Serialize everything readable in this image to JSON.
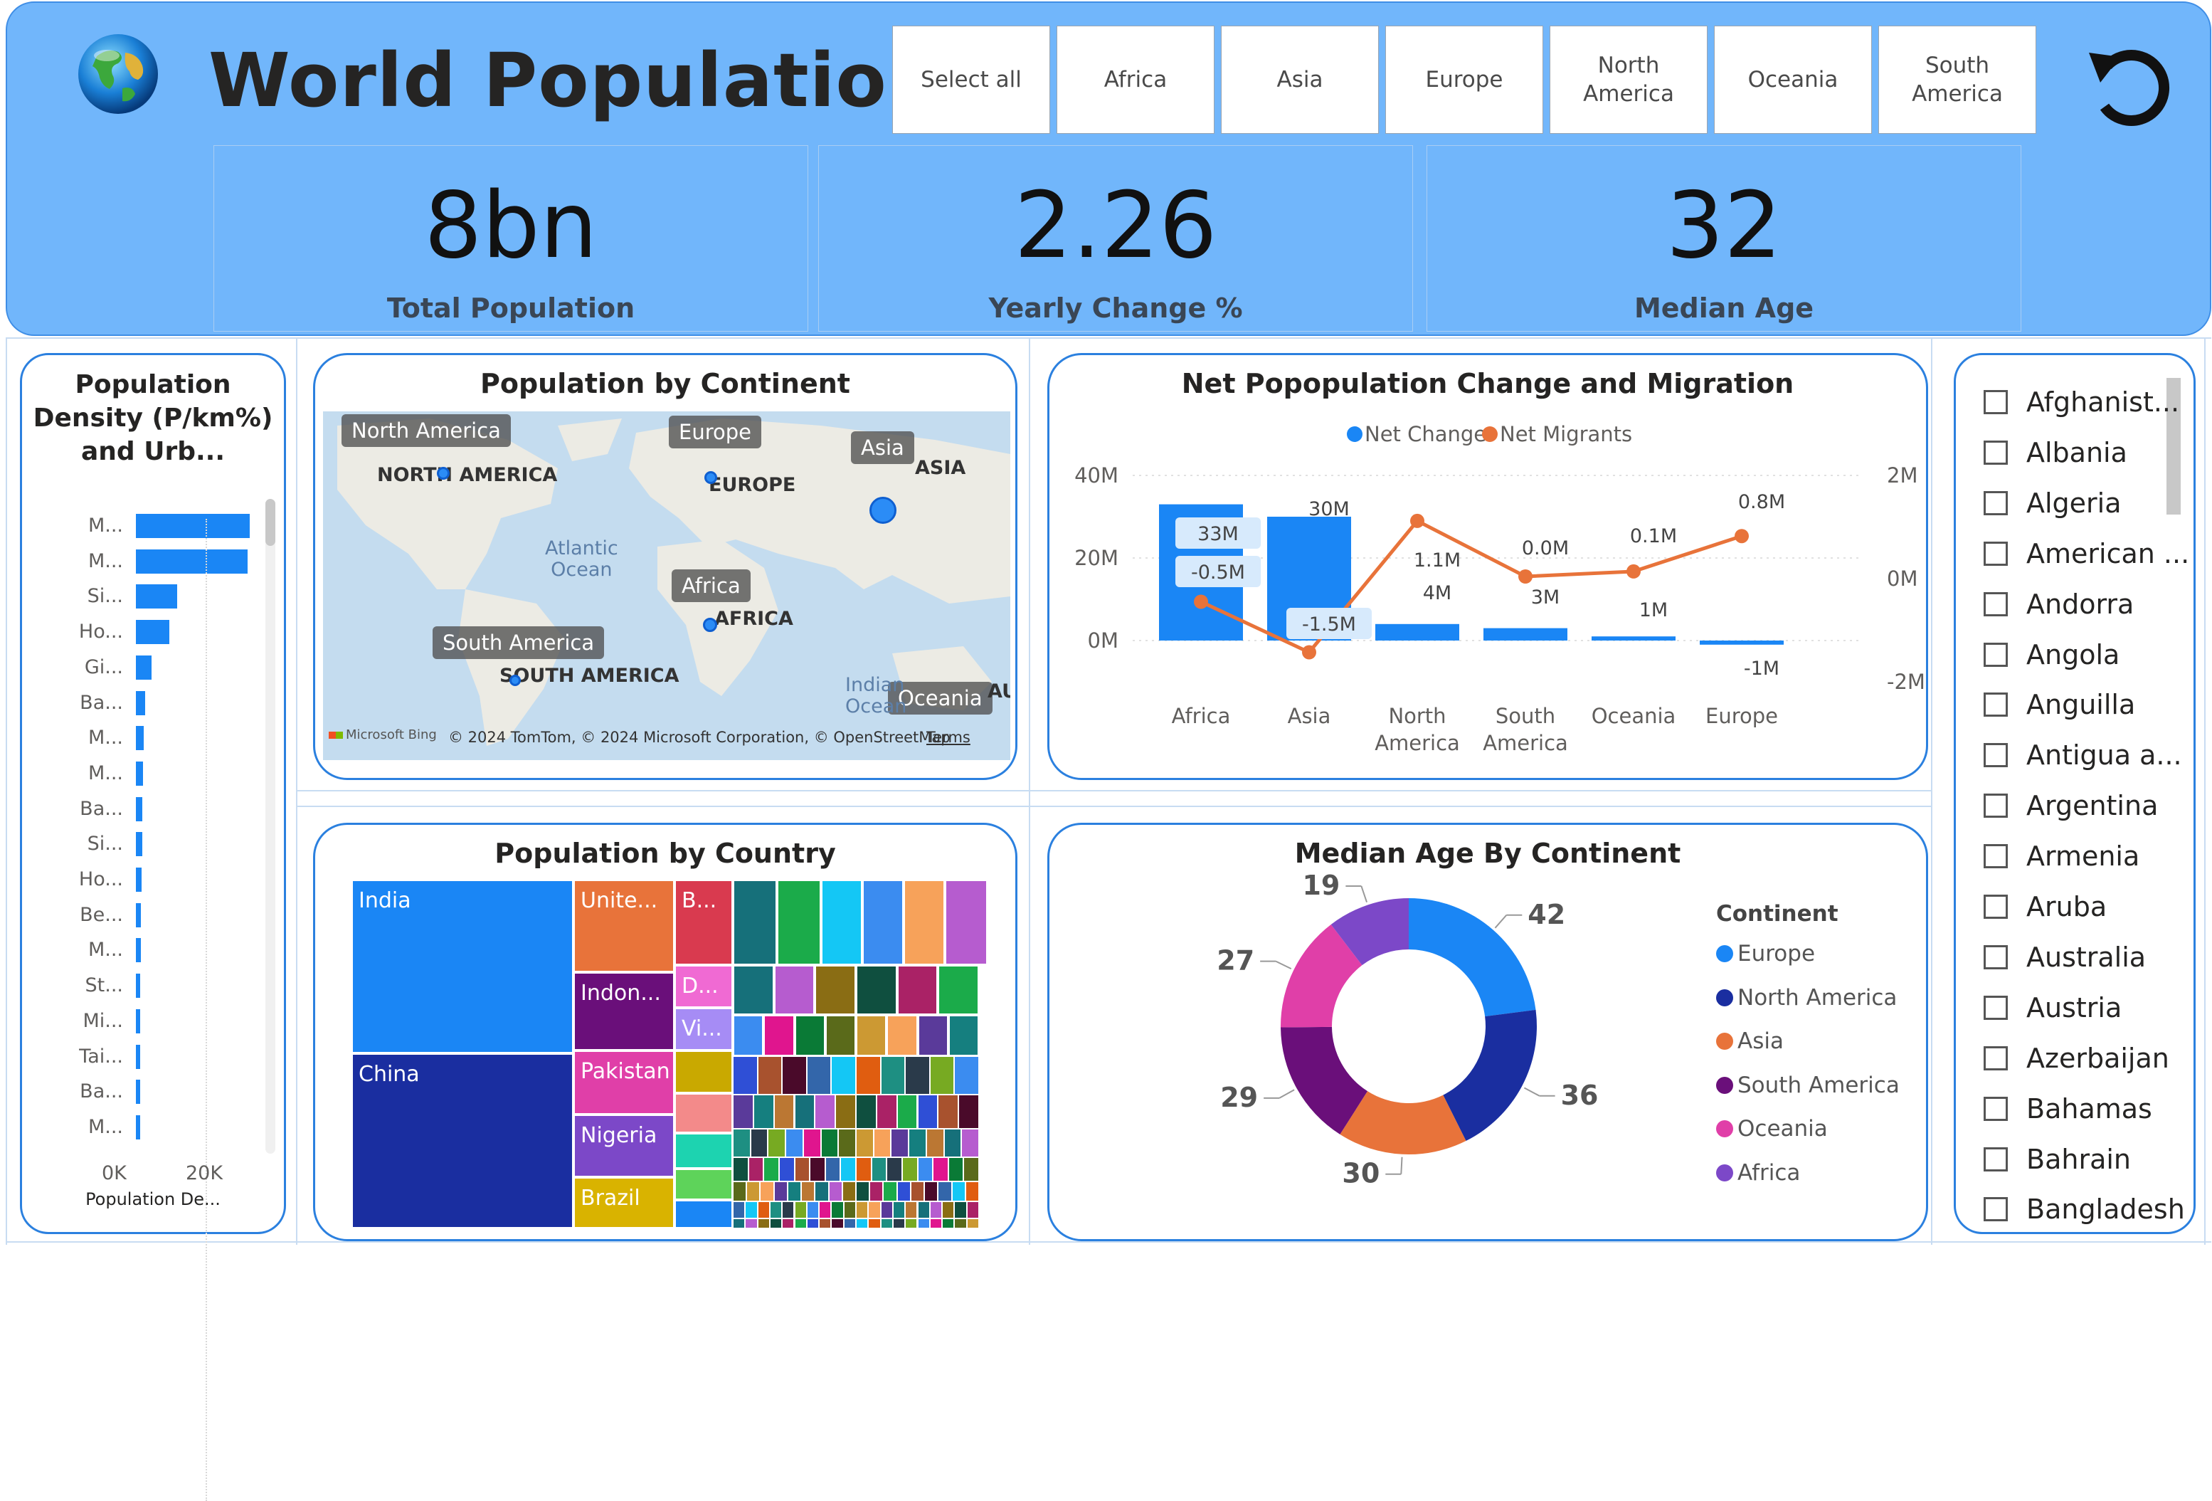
{
  "header": {
    "title": "World Population",
    "continent_buttons": [
      "Select all",
      "Africa",
      "Asia",
      "Europe",
      "North\nAmerica",
      "Oceania",
      "South\nAmerica"
    ],
    "reset_icon": "reset-icon",
    "globe_icon": "globe-icon"
  },
  "kpis": [
    {
      "value": "8bn",
      "label": "Total Population"
    },
    {
      "value": "2.26",
      "label": "Yearly Change %"
    },
    {
      "value": "32",
      "label": "Median Age"
    }
  ],
  "density": {
    "title": "Population Density (P/km%) and Urb...",
    "rows": [
      {
        "label": "M...",
        "value": 22000
      },
      {
        "label": "M...",
        "value": 21500
      },
      {
        "label": "Si...",
        "value": 8000
      },
      {
        "label": "Ho...",
        "value": 6500
      },
      {
        "label": "Gi...",
        "value": 3000
      },
      {
        "label": "Ba...",
        "value": 1800
      },
      {
        "label": "M...",
        "value": 1500
      },
      {
        "label": "M...",
        "value": 1400
      },
      {
        "label": "Ba...",
        "value": 1300
      },
      {
        "label": "Si...",
        "value": 1200
      },
      {
        "label": "Ho...",
        "value": 1100
      },
      {
        "label": "Be...",
        "value": 1000
      },
      {
        "label": "M...",
        "value": 900
      },
      {
        "label": "St...",
        "value": 850
      },
      {
        "label": "Mi...",
        "value": 800
      },
      {
        "label": "Tai...",
        "value": 750
      },
      {
        "label": "Ba...",
        "value": 700
      },
      {
        "label": "M...",
        "value": 650
      }
    ],
    "ticks": [
      "0K",
      "20K"
    ],
    "axis_title": "Population De..."
  },
  "map": {
    "title": "Population by Continent",
    "tags": [
      "North America",
      "Europe",
      "Asia",
      "Africa",
      "South America",
      "Oceania"
    ],
    "labels": [
      "NORTH AMERICA",
      "EUROPE",
      "ASIA",
      "AFRICA",
      "SOUTH AMERICA",
      "AU"
    ],
    "ocean_labels": [
      "Atlantic\nOcean",
      "Indian\nOcean"
    ],
    "attribution": "© 2024 TomTom, © 2024 Microsoft Corporation, © OpenStreetMap",
    "terms": "Terms",
    "bing": "Microsoft Bing"
  },
  "net_change": {
    "title": "Net Popopulation Change and Migration",
    "legend": [
      "Net Change",
      "Net Migrants"
    ],
    "colors": {
      "bar": "#1a86f5",
      "line": "#e8733a"
    }
  },
  "treemap": {
    "title": "Population by Country",
    "labels": [
      "India",
      "China",
      "Unite...",
      "Indon...",
      "Pakistan",
      "Nigeria",
      "Brazil",
      "B...",
      "D...",
      "Vi..."
    ]
  },
  "median_age": {
    "title": "Median Age By Continent",
    "legend_title": "Continent"
  },
  "countries": {
    "items": [
      "Afghanist...",
      "Albania",
      "Algeria",
      "American ...",
      "Andorra",
      "Angola",
      "Anguilla",
      "Antigua a...",
      "Argentina",
      "Armenia",
      "Aruba",
      "Australia",
      "Austria",
      "Azerbaijan",
      "Bahamas",
      "Bahrain",
      "Bangladesh"
    ]
  },
  "chart_data": [
    {
      "type": "bar",
      "title": "Net Popopulation Change and Migration",
      "categories": [
        "Africa",
        "Asia",
        "North\nAmerica",
        "South\nAmerica",
        "Oceania",
        "Europe"
      ],
      "series": [
        {
          "name": "Net Change",
          "type": "bar",
          "values": [
            33,
            30,
            4,
            3,
            1,
            -1
          ],
          "labels": [
            "33M",
            "30M",
            "4M",
            "3M",
            "1M",
            "-1M"
          ]
        },
        {
          "name": "Net Migrants",
          "type": "line",
          "values": [
            -0.5,
            -1.5,
            1.1,
            0.0,
            0.1,
            0.8
          ],
          "labels": [
            "-0.5M",
            "-1.5M",
            "1.1M",
            "0.0M",
            "0.1M",
            "0.8M"
          ]
        }
      ],
      "y_left": {
        "ticks": [
          "40M",
          "20M",
          "0M"
        ],
        "ylim": [
          -5,
          40
        ]
      },
      "y_right": {
        "ticks": [
          "2M",
          "0M",
          "-2M"
        ],
        "ylim": [
          -2,
          2
        ]
      }
    },
    {
      "type": "pie",
      "title": "Median Age By Continent",
      "categories": [
        "Europe",
        "North America",
        "Asia",
        "South America",
        "Oceania",
        "Africa"
      ],
      "values": [
        42,
        36,
        30,
        29,
        27,
        19
      ],
      "colors": [
        "#1a86f5",
        "#1a2ea0",
        "#e8733a",
        "#6a0f7a",
        "#e03fa8",
        "#7c48c8"
      ],
      "donut": true
    },
    {
      "type": "bar",
      "title": "Population Density (P/km%) and Urb...",
      "orientation": "horizontal",
      "xlim": [
        0,
        25000
      ]
    }
  ]
}
